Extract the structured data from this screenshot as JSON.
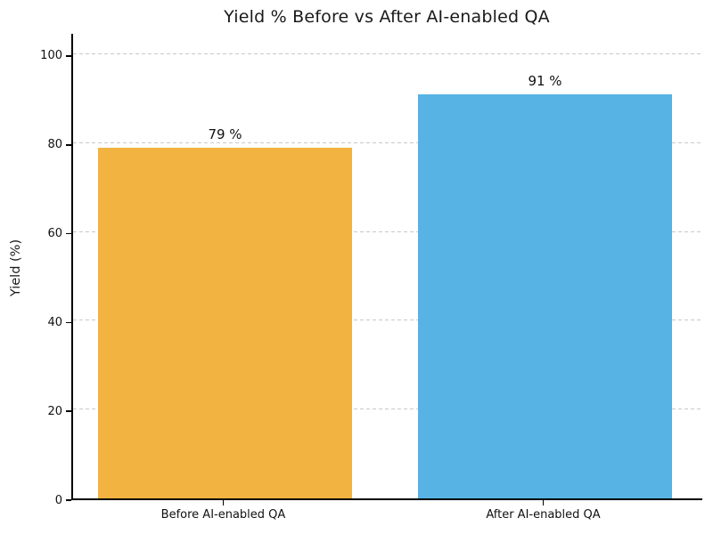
{
  "chart_data": {
    "type": "bar",
    "title": "Yield % Before vs After AI-enabled QA",
    "xlabel": "",
    "ylabel": "Yield (%)",
    "categories": [
      "Before AI-enabled QA",
      "After AI-enabled QA"
    ],
    "values": [
      79,
      91
    ],
    "value_labels": [
      "79 %",
      "91 %"
    ],
    "bar_colors": [
      "#F2B341",
      "#56B3E4"
    ],
    "yticks": [
      0,
      20,
      40,
      60,
      80,
      100
    ],
    "ylim": [
      0,
      105
    ],
    "grid": "horizontal-dashed",
    "grid_color": "#c9c9c9",
    "axis_color": "#000000",
    "text_color": "#1a1a1a",
    "legend": "none"
  }
}
